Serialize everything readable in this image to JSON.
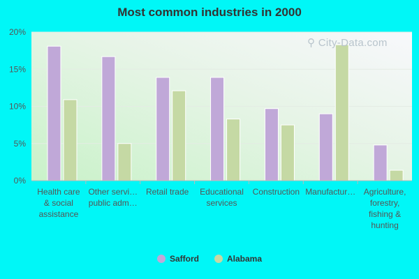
{
  "chart_data": {
    "type": "bar",
    "title": "Most common industries in 2000",
    "categories": [
      [
        "Health care",
        "& social",
        "assistance"
      ],
      [
        "Other servi…",
        "public adm…"
      ],
      [
        "Retail trade"
      ],
      [
        "Educational",
        "services"
      ],
      [
        "Construction"
      ],
      [
        "Manufactur…"
      ],
      [
        "Agriculture,",
        "forestry,",
        "fishing &",
        "hunting"
      ]
    ],
    "series": [
      {
        "name": "Safford",
        "color": "#c0a8d8",
        "values": [
          18.1,
          16.7,
          13.9,
          13.9,
          9.7,
          9.0,
          4.8
        ]
      },
      {
        "name": "Alabama",
        "color": "#c5d9a4",
        "values": [
          10.9,
          5.0,
          12.1,
          8.3,
          7.5,
          18.3,
          1.4
        ]
      }
    ],
    "yticks": [
      "0%",
      "5%",
      "10%",
      "15%",
      "20%"
    ],
    "ylim": [
      0,
      20
    ],
    "xlabel": "",
    "ylabel": "",
    "grid": true,
    "legend_position": "bottom"
  },
  "watermark": {
    "text": "City-Data.com",
    "icon": "magnifier-icon"
  }
}
